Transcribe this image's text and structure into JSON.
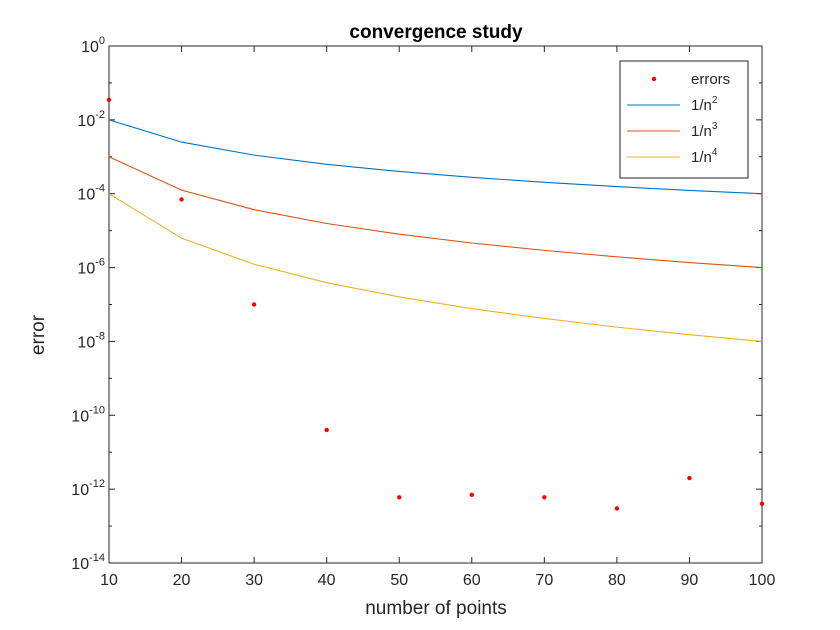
{
  "chart_data": {
    "type": "line",
    "title": "convergence study",
    "xlabel": "number of points",
    "ylabel": "error",
    "yscale": "log",
    "xlim": [
      10,
      100
    ],
    "ylim": [
      1e-14,
      1
    ],
    "grid": false,
    "legend_position": "top-right",
    "x_ticks": [
      {
        "value": 10,
        "label": "10"
      },
      {
        "value": 20,
        "label": "20"
      },
      {
        "value": 30,
        "label": "30"
      },
      {
        "value": 40,
        "label": "40"
      },
      {
        "value": 50,
        "label": "50"
      },
      {
        "value": 60,
        "label": "60"
      },
      {
        "value": 70,
        "label": "70"
      },
      {
        "value": 80,
        "label": "80"
      },
      {
        "value": 90,
        "label": "90"
      },
      {
        "value": 100,
        "label": "100"
      }
    ],
    "y_ticks": [
      {
        "value": 1,
        "base": "10",
        "exp": "0"
      },
      {
        "value": 0.01,
        "base": "10",
        "exp": "-2"
      },
      {
        "value": 0.0001,
        "base": "10",
        "exp": "-4"
      },
      {
        "value": 1e-06,
        "base": "10",
        "exp": "-6"
      },
      {
        "value": 1e-08,
        "base": "10",
        "exp": "-8"
      },
      {
        "value": 1e-10,
        "base": "10",
        "exp": "-10"
      },
      {
        "value": 1e-12,
        "base": "10",
        "exp": "-12"
      },
      {
        "value": 1e-14,
        "base": "10",
        "exp": "-14"
      }
    ],
    "x": [
      10,
      20,
      30,
      40,
      50,
      60,
      70,
      80,
      90,
      100
    ],
    "series": [
      {
        "name": "errors",
        "legend_base": "errors",
        "legend_exp": "",
        "style": "markers",
        "color": "#ff0000",
        "values": [
          0.035,
          7e-05,
          1e-07,
          4e-11,
          6e-13,
          7e-13,
          6e-13,
          3e-13,
          2e-12,
          4e-13
        ]
      },
      {
        "name": "1/n^2",
        "legend_base": "1/n",
        "legend_exp": "2",
        "style": "line",
        "color": "#0072bd",
        "values": [
          0.01,
          0.0025,
          0.00111,
          0.000625,
          0.0004,
          0.000278,
          0.000204,
          0.000156,
          0.000123,
          0.0001
        ]
      },
      {
        "name": "1/n^3",
        "legend_base": "1/n",
        "legend_exp": "3",
        "style": "line",
        "color": "#d95319",
        "values": [
          0.001,
          0.000125,
          3.7e-05,
          1.5625e-05,
          8e-06,
          4.63e-06,
          2.92e-06,
          1.95e-06,
          1.37e-06,
          1e-06
        ]
      },
      {
        "name": "1/n^4",
        "legend_base": "1/n",
        "legend_exp": "4",
        "style": "line",
        "color": "#edb120",
        "values": [
          0.0001,
          6.25e-06,
          1.23e-06,
          3.9e-07,
          1.6e-07,
          7.7e-08,
          4.2e-08,
          2.44e-08,
          1.52e-08,
          1e-08
        ]
      }
    ]
  }
}
